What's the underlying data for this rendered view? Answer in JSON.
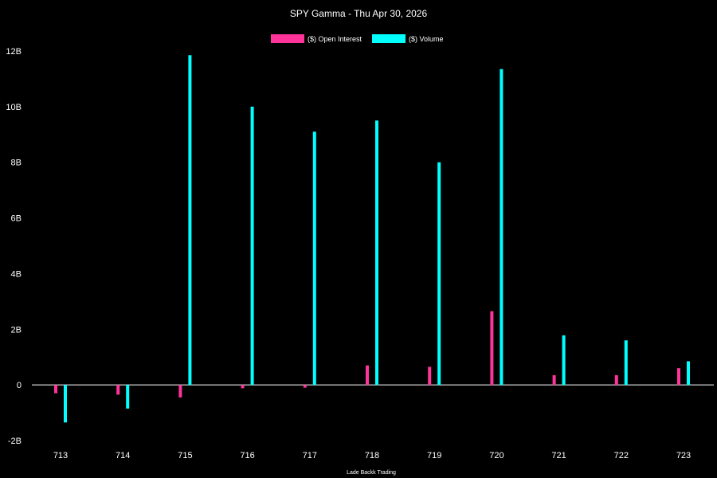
{
  "chart_data": {
    "type": "bar",
    "title": "SPY Gamma - Thu Apr 30, 2026",
    "footer": "Lade Backk Trading",
    "categories": [
      "713",
      "714",
      "715",
      "716",
      "717",
      "718",
      "719",
      "720",
      "721",
      "722",
      "723"
    ],
    "series": [
      {
        "name": "($) Open Interest",
        "color": "#ff3399",
        "values": [
          -0.3,
          -0.35,
          -0.45,
          -0.12,
          -0.1,
          0.7,
          0.65,
          2.65,
          0.35,
          0.35,
          0.6
        ]
      },
      {
        "name": "($) Volume",
        "color": "#00ffff",
        "values": [
          -1.35,
          -0.85,
          11.85,
          10.0,
          9.1,
          9.5,
          8.0,
          11.35,
          1.78,
          1.6,
          0.85
        ]
      }
    ],
    "ylim": [
      -2,
      12
    ],
    "yticks": [
      -2,
      0,
      2,
      4,
      6,
      8,
      10,
      12
    ],
    "ytick_labels": [
      "-2B",
      "0",
      "2B",
      "4B",
      "6B",
      "8B",
      "10B",
      "12B"
    ],
    "ylabel": "",
    "xlabel": "",
    "grid": false,
    "legend_position": "top-center",
    "zero_line_color": "#ffffff",
    "background": "#000000"
  }
}
